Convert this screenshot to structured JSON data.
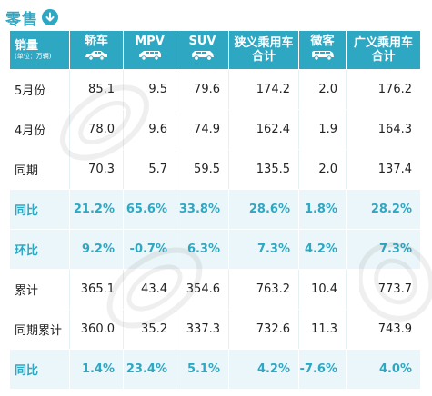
{
  "title": "零售",
  "header": {
    "first_col": {
      "label": "销量",
      "unit": "(单位：万辆)"
    },
    "columns": [
      {
        "label": "轿车",
        "icon": "sedan-icon"
      },
      {
        "label": "MPV",
        "icon": "mpv-icon"
      },
      {
        "label": "SUV",
        "icon": "suv-icon"
      },
      {
        "label_line1": "狭义乘用车",
        "label_line2": "合计"
      },
      {
        "label": "微客",
        "icon": "minivan-icon"
      },
      {
        "label_line1": "广义乘用车",
        "label_line2": "合计"
      }
    ]
  },
  "rows": [
    {
      "label": "5月份",
      "values": [
        "85.1",
        "9.5",
        "79.6",
        "174.2",
        "2.0",
        "176.2"
      ]
    },
    {
      "label": "4月份",
      "values": [
        "78.0",
        "9.6",
        "74.9",
        "162.4",
        "1.9",
        "164.3"
      ]
    },
    {
      "label": "同期",
      "values": [
        "70.3",
        "5.7",
        "59.5",
        "135.5",
        "2.0",
        "137.4"
      ]
    },
    {
      "label": "同比",
      "values": [
        "21.2%",
        "65.6%",
        "33.8%",
        "28.6%",
        "1.8%",
        "28.2%"
      ]
    },
    {
      "label": "环比",
      "values": [
        "9.2%",
        "-0.7%",
        "6.3%",
        "7.3%",
        "4.2%",
        "7.3%"
      ]
    },
    {
      "label": "累计",
      "values": [
        "365.1",
        "43.4",
        "354.6",
        "763.2",
        "10.4",
        "773.7"
      ]
    },
    {
      "label": "同期累计",
      "values": [
        "360.0",
        "35.2",
        "337.3",
        "732.6",
        "11.3",
        "743.9"
      ]
    },
    {
      "label": "同比",
      "values": [
        "1.4%",
        "23.4%",
        "5.1%",
        "4.2%",
        "-7.6%",
        "4.0%"
      ]
    }
  ],
  "colors": {
    "accent": "#2ea7c3",
    "shade": "#eaf6f9",
    "text": "#222222"
  }
}
